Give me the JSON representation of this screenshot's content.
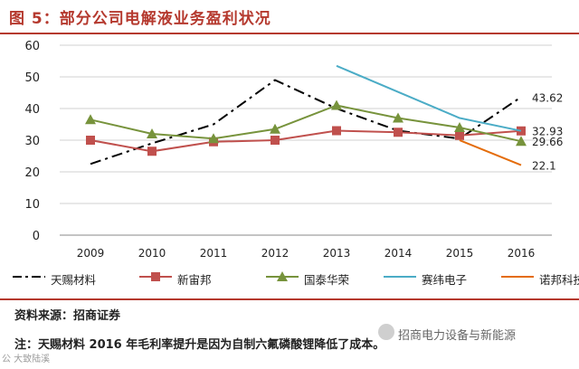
{
  "title": "图 5：部分公司电解液业务盈利状况",
  "source": "资料来源：招商证券",
  "note": "注：天赐材料 2016 年毛利率提升是因为自制六氟磷酸锂降低了成本。",
  "watermark_left": "公 大致陆溪",
  "watermark_right": "招商电力设备与新能源",
  "chart_data": {
    "type": "line",
    "title": "",
    "xlabel": "",
    "ylabel": "",
    "categories": [
      "2009",
      "2010",
      "2011",
      "2012",
      "2013",
      "2014",
      "2015",
      "2016"
    ],
    "ylim": [
      0,
      60
    ],
    "yticks": [
      0,
      10,
      20,
      30,
      40,
      50,
      60
    ],
    "grid": true,
    "legend_position": "bottom",
    "series": [
      {
        "name": "天赐材料",
        "color": "#000000",
        "style": "dashdot",
        "marker": "none",
        "values": [
          22.5,
          29,
          35,
          49,
          40,
          33,
          30.5,
          43.62
        ]
      },
      {
        "name": "新宙邦",
        "color": "#c0504d",
        "style": "solid",
        "marker": "square",
        "values": [
          30,
          26.5,
          29.5,
          30,
          33,
          32.5,
          31.5,
          32.93
        ]
      },
      {
        "name": "国泰华荣",
        "color": "#77933c",
        "style": "solid",
        "marker": "triangle",
        "values": [
          36.5,
          32,
          30.5,
          33.5,
          41,
          37,
          34,
          29.66
        ]
      },
      {
        "name": "赛纬电子",
        "color": "#4bacc6",
        "style": "solid",
        "marker": "none",
        "values": [
          null,
          null,
          null,
          null,
          53.5,
          null,
          37,
          32.93
        ]
      },
      {
        "name": "诺邦科技",
        "color": "#e46c0a",
        "style": "solid",
        "marker": "none",
        "values": [
          null,
          null,
          null,
          null,
          null,
          null,
          30,
          22.1
        ]
      }
    ],
    "annotations": [
      {
        "text": "43.62",
        "series": "天赐材料",
        "category": "2016"
      },
      {
        "text": "32.93",
        "series": "新宙邦",
        "category": "2016"
      },
      {
        "text": "29.66",
        "series": "国泰华荣",
        "category": "2016"
      },
      {
        "text": "22.1",
        "series": "诺邦科技",
        "category": "2016"
      }
    ]
  }
}
